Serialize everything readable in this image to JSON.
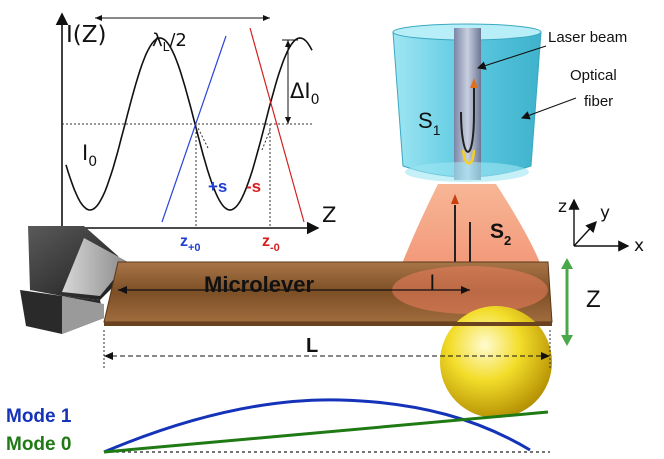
{
  "graph": {
    "y_axis_label": "I(Z)",
    "x_axis_label": "Z",
    "lambda_base": "λ",
    "lambda_sub": "L",
    "lambda_rest": "/2",
    "delta_label": "ΔI",
    "delta_sub": "0",
    "i0_label": "I",
    "i0_sub": "0",
    "plus_s": "+s",
    "minus_s": "-s",
    "zplus_base": "z",
    "zplus_sub": "+0",
    "zminus_base": "z",
    "zminus_sub": "-0"
  },
  "fiber": {
    "laser_label": "Laser beam",
    "optical_label": "Optical",
    "fiber_label": "fiber",
    "s1_base": "S",
    "s1_sub": "1",
    "s2_base": "S",
    "s2_sub": "2"
  },
  "axes3d": {
    "z": "z",
    "y": "y",
    "x": "x"
  },
  "lever": {
    "name": "Microlever",
    "l_label": "l",
    "length_label": "L",
    "z_label": "Z"
  },
  "modes": {
    "mode1": "Mode 1",
    "mode0": "Mode 0"
  },
  "colors": {
    "mode1": "#1533b8",
    "mode0": "#1f7a14",
    "plus_s": "#1f3fd0",
    "minus_s": "#d42020",
    "lever": "#8a5a2e",
    "fiber": "#6fd3e8",
    "cone": "#f08a6a",
    "ball": "#f0d020"
  }
}
